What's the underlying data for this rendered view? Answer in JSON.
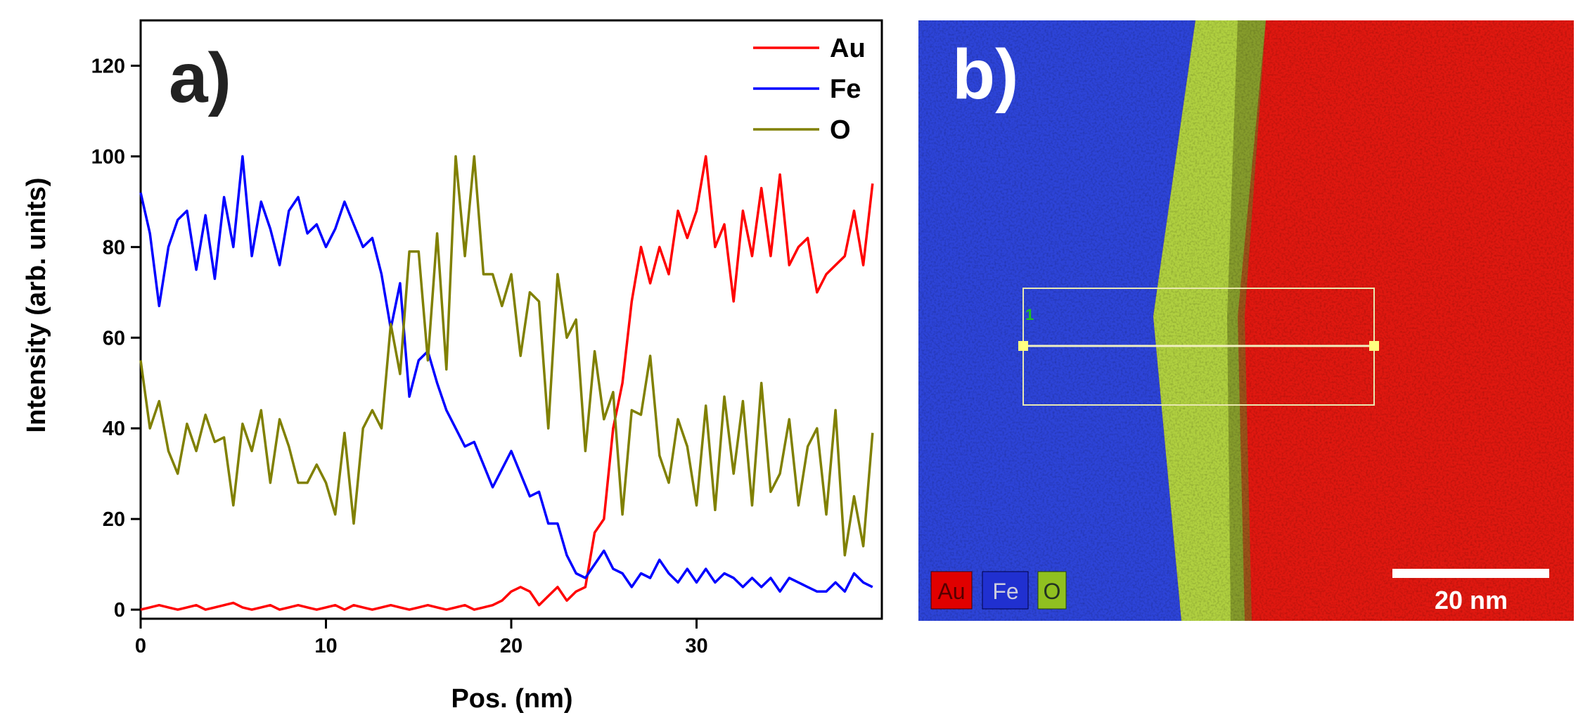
{
  "chart_data": {
    "type": "line",
    "label": "a)",
    "xlabel": "Pos. (nm)",
    "ylabel": "Intensity (arb. units)",
    "x": [
      0,
      0.5,
      1,
      1.5,
      2,
      2.5,
      3,
      3.5,
      4,
      4.5,
      5,
      5.5,
      6,
      6.5,
      7,
      7.5,
      8,
      8.5,
      9,
      9.5,
      10,
      10.5,
      11,
      11.5,
      12,
      12.5,
      13,
      13.5,
      14,
      14.5,
      15,
      15.5,
      16,
      16.5,
      17,
      17.5,
      18,
      18.5,
      19,
      19.5,
      20,
      20.5,
      21,
      21.5,
      22,
      22.5,
      23,
      23.5,
      24,
      24.5,
      25,
      25.5,
      26,
      26.5,
      27,
      27.5,
      28,
      28.5,
      29,
      29.5,
      30,
      30.5,
      31,
      31.5,
      32,
      32.5,
      33,
      33.5,
      34,
      34.5,
      35,
      35.5,
      36,
      36.5,
      37,
      37.5,
      38,
      38.5,
      39,
      39.5
    ],
    "series": [
      {
        "name": "Au",
        "color": "#ff0000",
        "values": [
          0,
          0.5,
          1,
          0.5,
          0,
          0.5,
          1,
          0,
          0.5,
          1,
          1.5,
          0.5,
          0,
          0.5,
          1,
          0,
          0.5,
          1,
          0.5,
          0,
          0.5,
          1,
          0,
          1,
          0.5,
          0,
          0.5,
          1,
          0.5,
          0,
          0.5,
          1,
          0.5,
          0,
          0.5,
          1,
          0,
          0.5,
          1,
          2,
          4,
          5,
          4,
          1,
          3,
          5,
          2,
          4,
          5,
          17,
          20,
          40,
          50,
          68,
          80,
          72,
          80,
          74,
          88,
          82,
          88,
          100,
          80,
          85,
          68,
          88,
          78,
          93,
          78,
          96,
          76,
          80,
          82,
          70,
          74,
          76,
          78,
          88,
          76,
          94
        ]
      },
      {
        "name": "Fe",
        "color": "#0000ff",
        "values": [
          92,
          83,
          67,
          80,
          86,
          88,
          75,
          87,
          73,
          91,
          80,
          100,
          78,
          90,
          84,
          76,
          88,
          91,
          83,
          85,
          80,
          84,
          90,
          85,
          80,
          82,
          74,
          62,
          72,
          47,
          55,
          57,
          50,
          44,
          40,
          36,
          37,
          32,
          27,
          31,
          35,
          30,
          25,
          26,
          19,
          19,
          12,
          8,
          7,
          10,
          13,
          9,
          8,
          5,
          8,
          7,
          11,
          8,
          6,
          9,
          6,
          9,
          6,
          8,
          7,
          5,
          7,
          5,
          7,
          4,
          7,
          6,
          5,
          4,
          4,
          6,
          4,
          8,
          6,
          5
        ]
      },
      {
        "name": "O",
        "color": "#808000",
        "values": [
          55,
          40,
          46,
          35,
          30,
          41,
          35,
          43,
          37,
          38,
          23,
          41,
          35,
          44,
          28,
          42,
          36,
          28,
          28,
          32,
          28,
          21,
          39,
          19,
          40,
          44,
          40,
          63,
          52,
          79,
          79,
          55,
          83,
          53,
          100,
          78,
          100,
          74,
          74,
          67,
          74,
          56,
          70,
          68,
          40,
          74,
          60,
          64,
          35,
          57,
          42,
          48,
          21,
          44,
          43,
          56,
          34,
          28,
          42,
          36,
          23,
          45,
          22,
          47,
          30,
          46,
          23,
          50,
          26,
          30,
          42,
          23,
          36,
          40,
          21,
          44,
          12,
          25,
          14,
          39
        ]
      }
    ],
    "xlim": [
      0,
      40
    ],
    "ylim": [
      -2,
      130
    ],
    "xticks": [
      0,
      10,
      20,
      30
    ],
    "yticks": [
      0,
      20,
      40,
      60,
      80,
      100,
      120
    ],
    "legend": "upper right"
  },
  "map_panel": {
    "label": "b)",
    "roi_label": "1",
    "legend": [
      "Au",
      "Fe",
      "O"
    ],
    "scale_bar": "20 nm"
  }
}
